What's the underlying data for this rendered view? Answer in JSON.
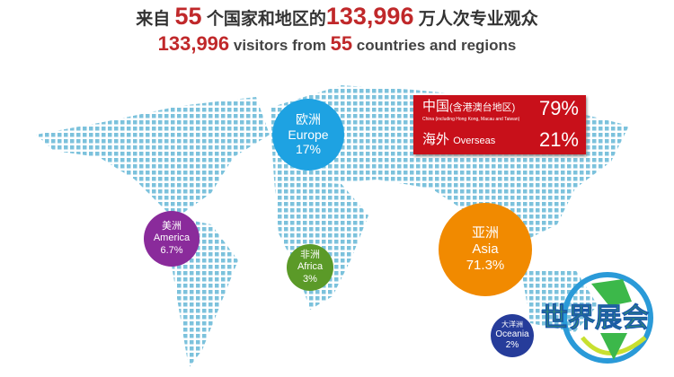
{
  "headline_cn": {
    "pre": "来自",
    "countries": "55",
    "mid": "个国家和地区的",
    "visitors": "133,996",
    "post": "万人次专业观众"
  },
  "headline_en": {
    "visitors": "133,996",
    "mid": " visitors from ",
    "countries": "55",
    "post": " countries and regions"
  },
  "regions": [
    {
      "cn": "欧洲",
      "en": "Europe",
      "pct": "17%",
      "color": "#1ea2e2"
    },
    {
      "cn": "美洲",
      "en": "America",
      "pct": "6.7%",
      "color": "#8a2b9b"
    },
    {
      "cn": "非洲",
      "en": "Africa",
      "pct": "3%",
      "color": "#5b9a28"
    },
    {
      "cn": "亚洲",
      "en": "Asia",
      "pct": "71.3%",
      "color": "#f18a00"
    },
    {
      "cn": "大洋洲",
      "en": "Oceania",
      "pct": "2%",
      "color": "#263c9a"
    }
  ],
  "origin_box": {
    "china_cn": "中国",
    "china_note": "(含港澳台地区)",
    "china_en": "China (including Hong Kong, Macau and Taiwan)",
    "china_pct": "79%",
    "overseas_cn": "海外",
    "overseas_en": "Overseas",
    "overseas_pct": "21%",
    "color": "#c8101a"
  },
  "logo": {
    "text": "世界展会"
  },
  "map_dot_color": "#7cc2dc"
}
